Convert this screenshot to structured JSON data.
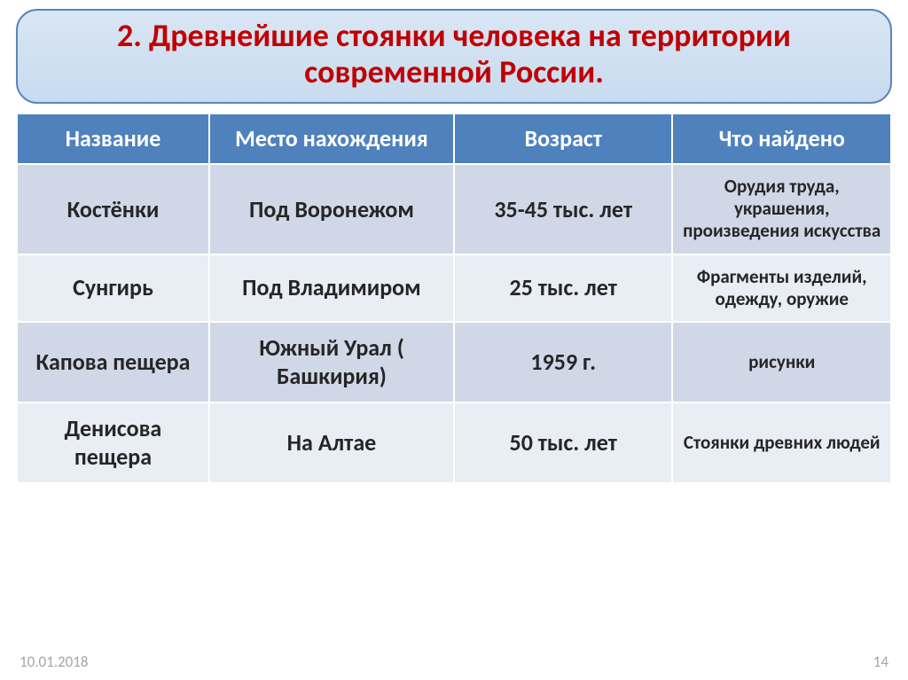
{
  "title": "2. Древнейшие стоянки человека на территории современной России.",
  "table": {
    "columns": [
      "Название",
      "Место нахождения",
      "Возраст",
      "Что найдено"
    ],
    "col_widths": [
      "22%",
      "28%",
      "25%",
      "25%"
    ],
    "rows": [
      {
        "name": "Костёнки",
        "place": "Под Воронежом",
        "age": "35-45 тыс. лет",
        "found": "Орудия труда, украшения, произведения искусства"
      },
      {
        "name": "Сунгирь",
        "place": "Под Владимиром",
        "age": "25 тыс. лет",
        "found": "Фрагменты изделий, одежду, оружие"
      },
      {
        "name": "Капова пещера",
        "place": "Южный Урал ( Башкирия)",
        "age": "1959 г.",
        "found": "рисунки"
      },
      {
        "name": "Денисова пещера",
        "place": "На Алтае",
        "age": "50 тыс. лет",
        "found": "Стоянки древних людей"
      }
    ]
  },
  "footer": {
    "date": "10.01.2018",
    "page": "14"
  },
  "colors": {
    "title_text": "#c00000",
    "header_bg": "#4f81bd",
    "row_odd_bg": "#d0d8e8",
    "row_even_bg": "#e9edf4",
    "footer_text": "#a6a6a6"
  }
}
